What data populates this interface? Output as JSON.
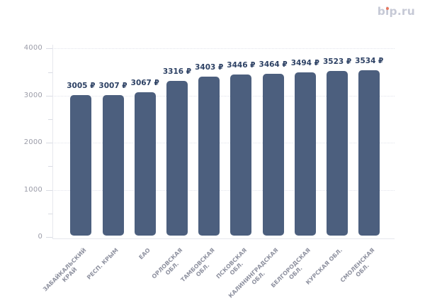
{
  "page": {
    "background": "#ffffff"
  },
  "logo": {
    "text": "bip.ru",
    "color": "#c6c9d6",
    "dot_color": "#e8775f"
  },
  "chart_data": {
    "type": "bar",
    "title": "",
    "xlabel": "",
    "ylabel": "",
    "categories": [
      "ЗАБАЙКАЛЬСКИЙ КРАЙ",
      "РЕСП. КРЫМ",
      "ЕАО",
      "ОРЛОВСКАЯ ОБЛ.",
      "ТАМБОВСКАЯ ОБЛ.",
      "ПСКОВСКАЯ ОБЛ.",
      "КАЛИНИНГРАДСКАЯ ОБЛ.",
      "БЕЛГОРОДСКАЯ ОБЛ.",
      "КУРСКАЯ ОБЛ.",
      "СМОЛЕНСКАЯ ОБЛ."
    ],
    "category_lines": [
      [
        "ЗАБАЙКАЛЬСКИЙ",
        "КРАЙ"
      ],
      [
        "РЕСП. КРЫМ"
      ],
      [
        "ЕАО"
      ],
      [
        "ОРЛОВСКАЯ",
        "ОБЛ."
      ],
      [
        "ТАМБОВСКАЯ",
        "ОБЛ."
      ],
      [
        "ПСКОВСКАЯ",
        "ОБЛ."
      ],
      [
        "КАЛИНИНГРАДСКАЯ",
        "ОБЛ."
      ],
      [
        "БЕЛГОРОДСКАЯ",
        "ОБЛ."
      ],
      [
        "КУРСКАЯ ОБЛ."
      ],
      [
        "СМОЛЕНСКАЯ",
        "ОБЛ."
      ]
    ],
    "values": [
      3005,
      3007,
      3067,
      3316,
      3403,
      3446,
      3464,
      3494,
      3523,
      3534
    ],
    "value_suffix": "₽",
    "ylim": [
      0,
      4000
    ],
    "y_ticks": [
      0,
      1000,
      2000,
      3000,
      4000
    ],
    "y_minor_ticks": [
      500,
      1500,
      2500,
      3500
    ],
    "grid": "horizontal-dotted-at-major-ticks",
    "legend": false,
    "colors": {
      "bar": "#4c5f7e",
      "value_label": "#2d4164",
      "y_axis_text": "#9b9ca8",
      "x_axis_text": "#8f92a0",
      "grid_line": "#e2e4ec",
      "axis_line": "#e6e7ed",
      "tick": "#d9dbe3"
    }
  }
}
